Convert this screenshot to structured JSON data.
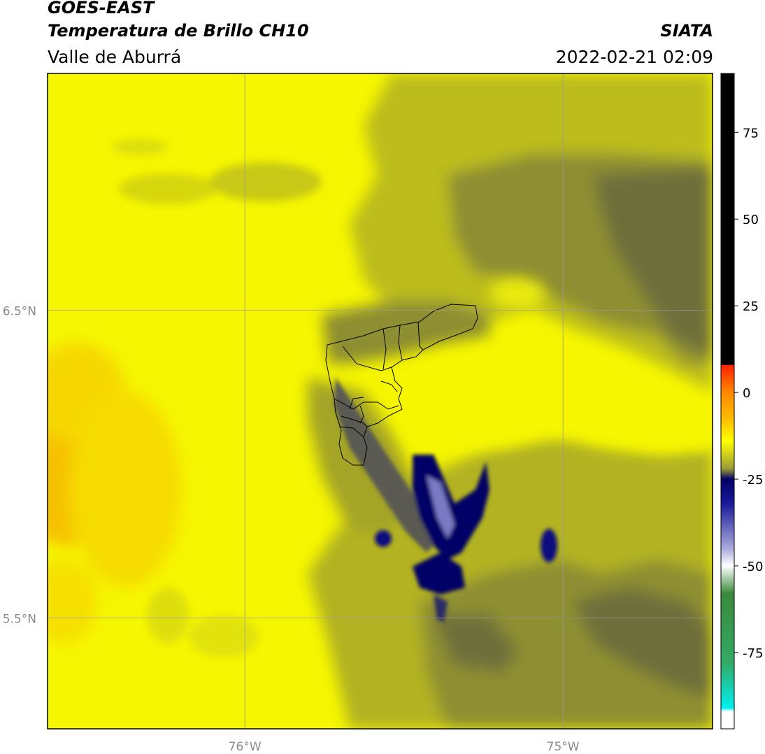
{
  "header": {
    "title": "GOES-EAST",
    "subtitle": "Temperatura de Brillo CH10",
    "region": "Valle de Aburrá",
    "organization": "SIATA",
    "timestamp": "2022-02-21 02:09"
  },
  "map": {
    "lon_range": [
      -76.62,
      -74.53
    ],
    "lat_range": [
      5.14,
      7.27
    ],
    "lat_ticks": [
      {
        "value": 6.5,
        "label": "6.5°N"
      },
      {
        "value": 5.5,
        "label": "5.5°N"
      }
    ],
    "lon_ticks": [
      {
        "value": -76.0,
        "label": "76°W"
      },
      {
        "value": -75.0,
        "label": "75°W"
      }
    ],
    "grid": true,
    "boundaries": "Valle de Aburrá municipalities outline"
  },
  "colorbar": {
    "range": [
      -97,
      92
    ],
    "ticks": [
      {
        "value": 75,
        "label": "75"
      },
      {
        "value": 50,
        "label": "50"
      },
      {
        "value": 25,
        "label": "25"
      },
      {
        "value": 0,
        "label": "0"
      },
      {
        "value": -25,
        "label": "-25"
      },
      {
        "value": -50,
        "label": "-50"
      },
      {
        "value": -75,
        "label": "-75"
      }
    ],
    "color_stops": [
      {
        "value": 92,
        "color": "#000000"
      },
      {
        "value": 8,
        "color": "#000000"
      },
      {
        "value": 7.9,
        "color": "#ff2200"
      },
      {
        "value": 0,
        "color": "#ff8800"
      },
      {
        "value": -8,
        "color": "#ffc000"
      },
      {
        "value": -14,
        "color": "#ffff00"
      },
      {
        "value": -22,
        "color": "#9a9a3a"
      },
      {
        "value": -25,
        "color": "#000066"
      },
      {
        "value": -32,
        "color": "#1a1a99"
      },
      {
        "value": -45,
        "color": "#aaaadd"
      },
      {
        "value": -50,
        "color": "#ffffff"
      },
      {
        "value": -58,
        "color": "#3a8a3a"
      },
      {
        "value": -78,
        "color": "#33aa66"
      },
      {
        "value": -91,
        "color": "#00f0f0"
      },
      {
        "value": -92,
        "color": "#ffffff"
      },
      {
        "value": -97,
        "color": "#ffffff"
      }
    ]
  }
}
